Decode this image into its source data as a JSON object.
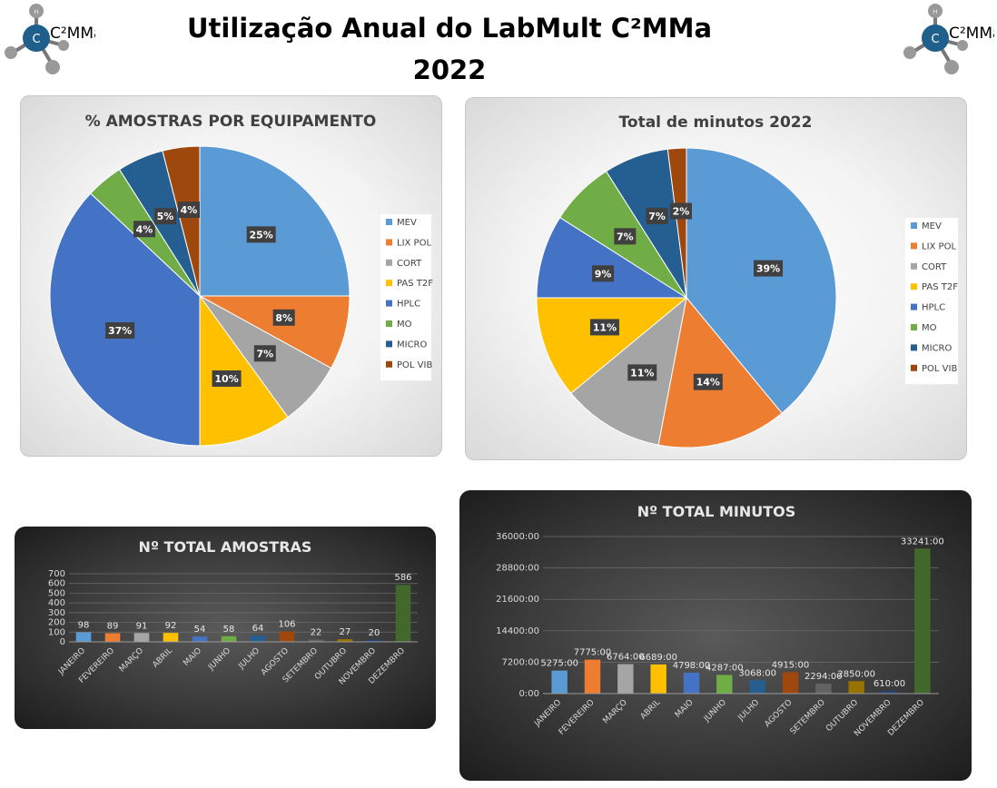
{
  "page": {
    "title_line1": "Utilização Anual do LabMult C²MMa",
    "title_line2": "2022",
    "logo_text": "C²MMa",
    "logo_center": "C",
    "logo_atom": "H"
  },
  "colors": {
    "equipment": [
      "#5b9bd5",
      "#ed7d31",
      "#a5a5a5",
      "#ffc000",
      "#4472c4",
      "#70ad47",
      "#255e91",
      "#9e480e"
    ],
    "months": [
      "#5b9bd5",
      "#ed7d31",
      "#a5a5a5",
      "#ffc000",
      "#4472c4",
      "#70ad47",
      "#255e91",
      "#9e480e",
      "#636363",
      "#997300",
      "#264478",
      "#43682b"
    ]
  },
  "chart_data": [
    {
      "type": "pie",
      "title": "% AMOSTRAS POR EQUIPAMENTO",
      "categories": [
        "MEV",
        "LIX POL",
        "CORT",
        "PAS T2F",
        "HPLC",
        "MO",
        "MICRO",
        "POL VIB"
      ],
      "values": [
        25,
        8,
        7,
        10,
        37,
        4,
        5,
        4
      ],
      "labels": [
        "25%",
        "8%",
        "7%",
        "10%",
        "37%",
        "4%",
        "5%",
        "4%"
      ],
      "legend": "right"
    },
    {
      "type": "pie",
      "title": "Total de minutos 2022",
      "categories": [
        "MEV",
        "LIX POL",
        "CORT",
        "PAS T2F",
        "HPLC",
        "MO",
        "MICRO",
        "POL VIB"
      ],
      "values": [
        39,
        14,
        11,
        11,
        9,
        7,
        7,
        2
      ],
      "labels": [
        "39%",
        "14%",
        "11%",
        "11%",
        "9%",
        "7%",
        "7%",
        "2%"
      ],
      "legend": "right"
    },
    {
      "type": "bar",
      "title": "Nº TOTAL  AMOSTRAS",
      "categories": [
        "JANEIRO",
        "FEVEREIRO",
        "MARÇO",
        "ABRIL",
        "MAIO",
        "JUNHO",
        "JULHO",
        "AGOSTO",
        "SETEMBRO",
        "OUTUBRO",
        "NOVEMBRO",
        "DEZEMBRO"
      ],
      "values": [
        98,
        89,
        91,
        92,
        54,
        58,
        64,
        106,
        22,
        27,
        20,
        586
      ],
      "labels": [
        "98",
        "89",
        "91",
        "92",
        "54",
        "58",
        "64",
        "106",
        "22",
        "27",
        "20",
        "586"
      ],
      "yticks": [
        "0",
        "100",
        "200",
        "300",
        "400",
        "500",
        "600",
        "700"
      ],
      "ylim": [
        0,
        700
      ],
      "grid": true
    },
    {
      "type": "bar",
      "title": "Nº TOTAL  MINUTOS",
      "categories": [
        "JANEIRO",
        "FEVEREIRO",
        "MARÇO",
        "ABRIL",
        "MAIO",
        "JUNHO",
        "JULHO",
        "AGOSTO",
        "SETEMBRO",
        "OUTUBRO",
        "NOVEMBRO",
        "DEZEMBRO"
      ],
      "values": [
        5275,
        7775,
        6764,
        6689,
        4798,
        4287,
        3068,
        4915,
        2294,
        2850,
        610,
        33241
      ],
      "labels": [
        "5275:00",
        "7775:00",
        "6764:00",
        "6689:00",
        "4798:00",
        "4287:00",
        "3068:00",
        "4915:00",
        "2294:00",
        "2850:00",
        "610:00",
        "33241:00"
      ],
      "yticks": [
        "0:00",
        "7200:00",
        "14400:00",
        "21600:00",
        "28800:00",
        "36000:00"
      ],
      "ylim": [
        0,
        36000
      ],
      "grid": true
    }
  ]
}
